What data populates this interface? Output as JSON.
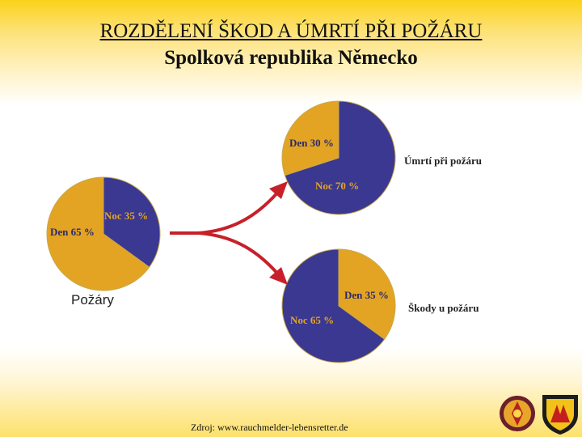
{
  "header": {
    "title": "ROZDĚLENÍ ŠKOD A ÚMRTÍ PŘI POŽÁRU",
    "subtitle": "Spolková republika Německo"
  },
  "colors": {
    "den": "#e3a424",
    "noc": "#3a3890",
    "arrow": "#c8202a"
  },
  "chart_data": [
    {
      "type": "pie",
      "title": "Požáry",
      "slices": [
        {
          "label": "Noc 35 %",
          "category": "Noc",
          "value": 35
        },
        {
          "label": "Den 65 %",
          "category": "Den",
          "value": 65
        }
      ]
    },
    {
      "type": "pie",
      "title": "Úmrtí při  požáru",
      "slices": [
        {
          "label": "Noc 70 %",
          "category": "Noc",
          "value": 70
        },
        {
          "label": "Den 30 %",
          "category": "Den",
          "value": 30
        }
      ]
    },
    {
      "type": "pie",
      "title": "Škody u požáru",
      "slices": [
        {
          "label": "Den 35 %",
          "category": "Den",
          "value": 35
        },
        {
          "label": "Noc 65 %",
          "category": "Noc",
          "value": 65
        }
      ]
    }
  ],
  "footer": {
    "source": "Zdroj: www.rauchmelder-lebensretter.de"
  }
}
